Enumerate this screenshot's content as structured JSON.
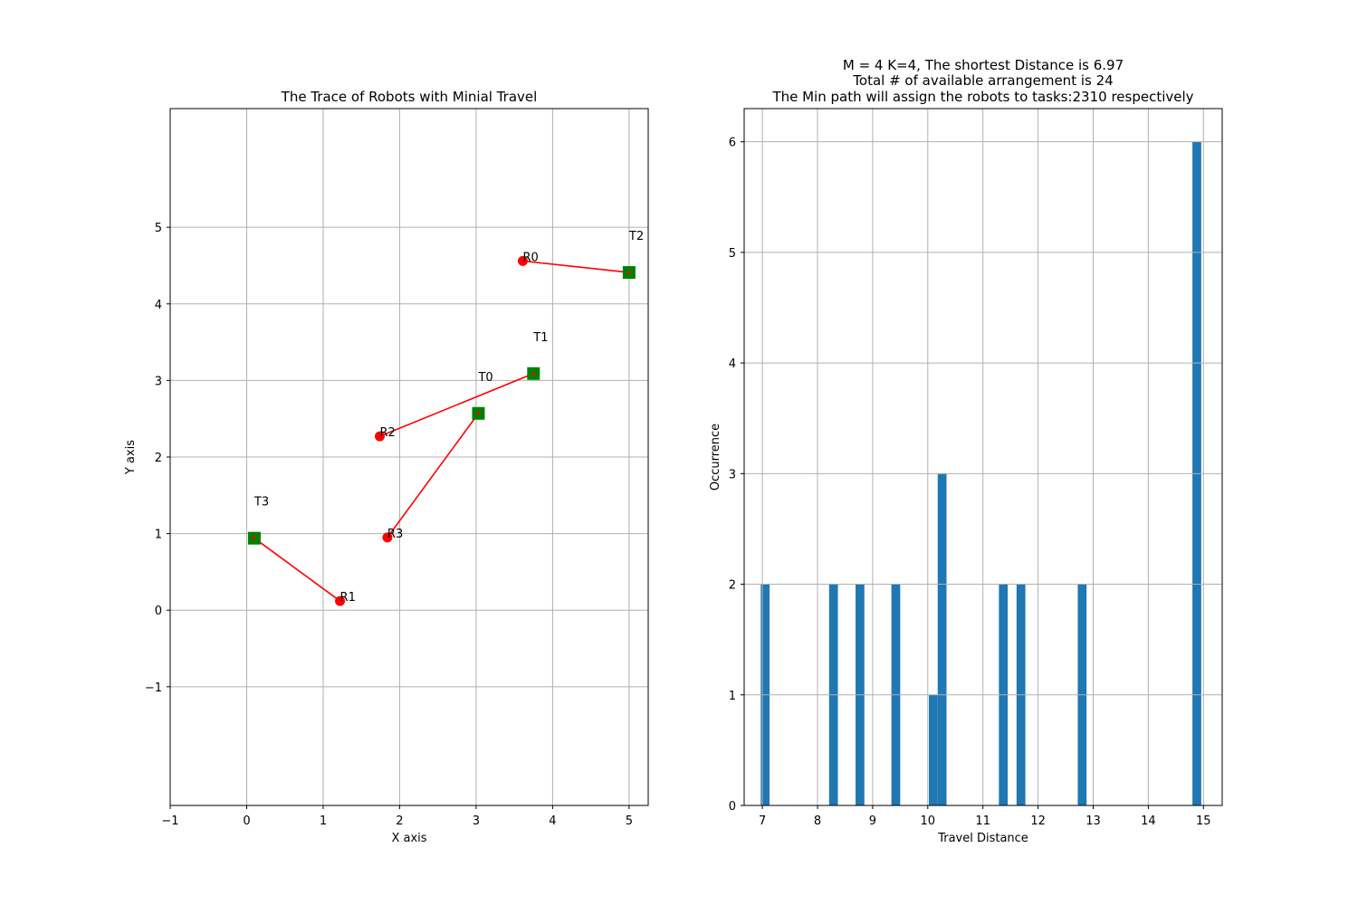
{
  "chart_data": [
    {
      "type": "scatter",
      "title": "The Trace of Robots with Minial Travel",
      "xlabel": "X axis",
      "ylabel": "Y axis",
      "xlim": [
        -1,
        5.25
      ],
      "ylim": [
        -2.55,
        6.55
      ],
      "xticks": [
        -1,
        0,
        1,
        2,
        3,
        4,
        5
      ],
      "yticks": [
        -1,
        0,
        1,
        2,
        3,
        4,
        5
      ],
      "grid": true,
      "robot_color": "#ff0000",
      "task_color": "#008000",
      "line_color": "#ff0000",
      "robots": [
        {
          "label": "R0",
          "x": 3.61,
          "y": 4.56
        },
        {
          "label": "R1",
          "x": 1.22,
          "y": 0.12
        },
        {
          "label": "R2",
          "x": 1.74,
          "y": 2.27
        },
        {
          "label": "R3",
          "x": 1.84,
          "y": 0.95
        }
      ],
      "tasks": [
        {
          "label": "T0",
          "x": 3.03,
          "y": 2.57
        },
        {
          "label": "T1",
          "x": 3.75,
          "y": 3.09
        },
        {
          "label": "T2",
          "x": 5.0,
          "y": 4.41
        },
        {
          "label": "T3",
          "x": 0.1,
          "y": 0.94
        }
      ],
      "assignments": [
        {
          "robot": "R0",
          "task": "T2"
        },
        {
          "robot": "R1",
          "task": "T3"
        },
        {
          "robot": "R2",
          "task": "T1"
        },
        {
          "robot": "R3",
          "task": "T0"
        }
      ]
    },
    {
      "type": "bar",
      "title_lines": [
        "M = 4   K=4, The shortest Distance is 6.97",
        "Total # of available arrangement is 24",
        "The Min path will assign the robots to tasks:2310 respectively"
      ],
      "xlabel": "Travel Distance",
      "ylabel": "Occurrence",
      "xlim": [
        6.67,
        15.34
      ],
      "ylim": [
        0,
        6.3
      ],
      "xticks": [
        7,
        8,
        9,
        10,
        11,
        12,
        13,
        14,
        15
      ],
      "yticks": [
        0,
        1,
        2,
        3,
        4,
        5,
        6
      ],
      "grid": true,
      "bar_color": "#1f77b4",
      "bin_width": 0.16,
      "bins": [
        {
          "x": 6.97,
          "count": 2
        },
        {
          "x": 8.21,
          "count": 2
        },
        {
          "x": 8.69,
          "count": 2
        },
        {
          "x": 9.34,
          "count": 2
        },
        {
          "x": 10.02,
          "count": 1
        },
        {
          "x": 10.18,
          "count": 3
        },
        {
          "x": 11.29,
          "count": 2
        },
        {
          "x": 11.61,
          "count": 2
        },
        {
          "x": 12.72,
          "count": 2
        },
        {
          "x": 14.8,
          "count": 6
        }
      ]
    }
  ]
}
